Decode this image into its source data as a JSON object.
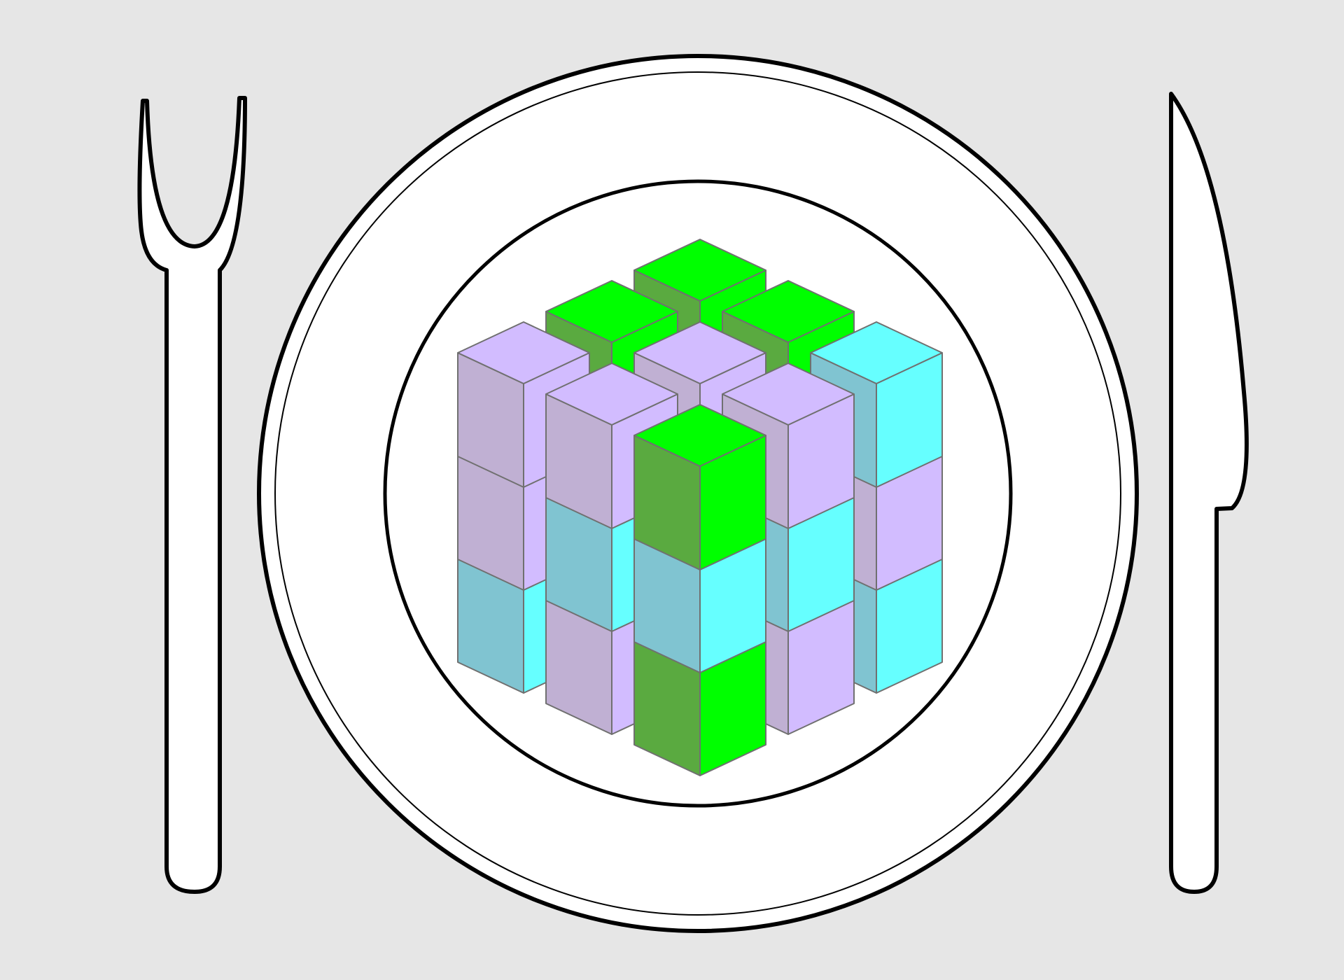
{
  "background_color": "#e6e6e6",
  "outline_color": "#000000",
  "tableware": {
    "fork_icon": "fork-icon",
    "plate_icon": "plate-icon",
    "knife_icon": "knife-icon",
    "fill": "#ffffff"
  },
  "cube_stack": {
    "edge_color": "#707070",
    "palette": {
      "cyan": {
        "top": "#66ffff",
        "left": "#80c4d1",
        "right": "#66ffff"
      },
      "green": {
        "top": "#00ff00",
        "left": "#5aaa40",
        "right": "#00ff00"
      },
      "purple": {
        "top": "#d2bcff",
        "left": "#c0b0d3",
        "right": "#d2bcff"
      }
    },
    "layers": [
      [
        "green",
        "green",
        "cyan",
        "green",
        "cyan",
        "purple",
        "cyan",
        "purple",
        "green"
      ],
      [
        "cyan",
        "purple",
        "purple",
        "purple",
        "purple",
        "cyan",
        "purple",
        "cyan",
        "cyan"
      ],
      [
        "green",
        "green",
        "purple",
        "green",
        "purple",
        "purple",
        "cyan",
        "purple",
        "green"
      ]
    ]
  }
}
